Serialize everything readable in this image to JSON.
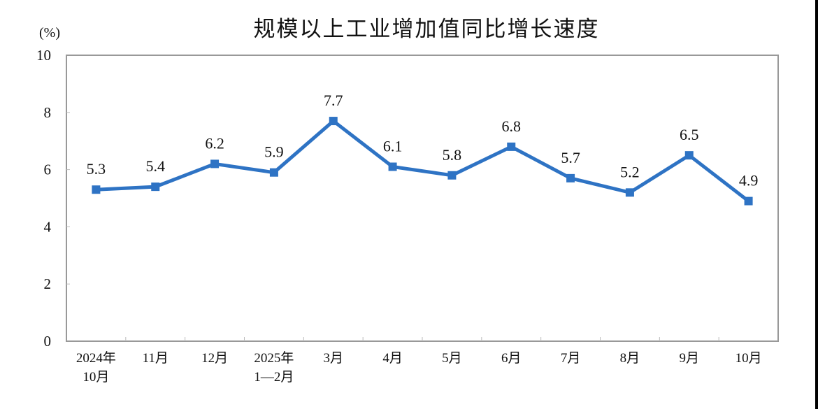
{
  "header": {
    "title": "规模以上工业增加值同比增长速度",
    "unit": "(%)"
  },
  "colors": {
    "series": "#2E73C4",
    "axis": "#999999",
    "text": "#111111"
  },
  "chart_data": {
    "type": "line",
    "title": "规模以上工业增加值同比增长速度",
    "xlabel": "",
    "ylabel": "(%)",
    "ylim": [
      0,
      10
    ],
    "yticks": [
      0,
      2,
      4,
      6,
      8,
      10
    ],
    "grid": false,
    "legend": null,
    "categories": [
      [
        "2024年",
        "10月"
      ],
      [
        "11月"
      ],
      [
        "12月"
      ],
      [
        "2025年",
        "1—2月"
      ],
      [
        "3月"
      ],
      [
        "4月"
      ],
      [
        "5月"
      ],
      [
        "6月"
      ],
      [
        "7月"
      ],
      [
        "8月"
      ],
      [
        "9月"
      ],
      [
        "10月"
      ]
    ],
    "series": [
      {
        "name": "规模以上工业增加值同比增长速度",
        "values": [
          5.3,
          5.4,
          6.2,
          5.9,
          7.7,
          6.1,
          5.8,
          6.8,
          5.7,
          5.2,
          6.5,
          4.9
        ],
        "marker": "square",
        "data_labels": [
          "5.3",
          "5.4",
          "6.2",
          "5.9",
          "7.7",
          "6.1",
          "5.8",
          "6.8",
          "5.7",
          "5.2",
          "6.5",
          "4.9"
        ]
      }
    ]
  }
}
